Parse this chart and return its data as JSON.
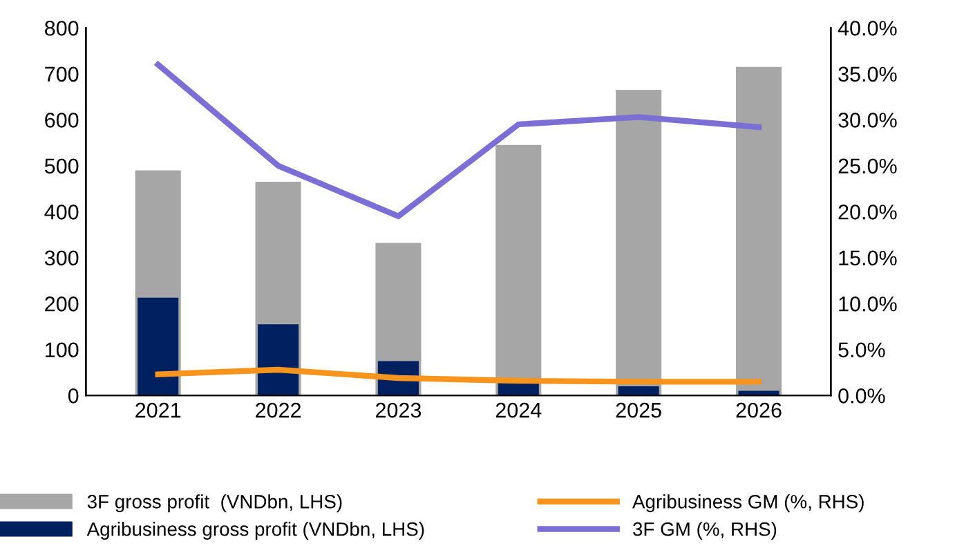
{
  "chart_data": {
    "type": "bar",
    "categories": [
      "2021",
      "2022",
      "2023",
      "2024",
      "2025",
      "2026"
    ],
    "series": [
      {
        "name": "3F gross profit  (VNDbn, LHS)",
        "color": "#a6a6a6",
        "values": [
          490,
          465,
          332,
          545,
          665,
          715
        ]
      },
      {
        "name": "Agribusiness gross profit (VNDbn, LHS)",
        "color": "#002060",
        "values": [
          213,
          155,
          75,
          30,
          20,
          10
        ]
      },
      {
        "name": "Agribusiness GM (%, RHS)",
        "type": "line",
        "axis": "y2",
        "color": "#f7941d",
        "values": [
          2.3,
          2.8,
          1.9,
          1.6,
          1.5,
          1.5
        ]
      },
      {
        "name": "3F GM (%, RHS)",
        "type": "line",
        "axis": "y2",
        "color": "#7b6fd6",
        "values": [
          36,
          25,
          19.5,
          29.5,
          30.3,
          29.2
        ]
      }
    ],
    "ylim": [
      0,
      800
    ],
    "yticks": [
      0,
      100,
      200,
      300,
      400,
      500,
      600,
      700,
      800
    ],
    "y2lim": [
      0,
      40
    ],
    "y2ticks": [
      {
        "value": 0,
        "label": "0.0%"
      },
      {
        "value": 5,
        "label": "5.0%"
      },
      {
        "value": 10,
        "label": "10.0%"
      },
      {
        "value": 15,
        "label": "15.0%"
      },
      {
        "value": 20,
        "label": "20.0%"
      },
      {
        "value": 25,
        "label": "25.0%"
      },
      {
        "value": 30,
        "label": "30.0%"
      },
      {
        "value": 35,
        "label": "35.0%"
      },
      {
        "value": 40,
        "label": "40.0%"
      }
    ],
    "legend": "bottom",
    "grid": false
  }
}
